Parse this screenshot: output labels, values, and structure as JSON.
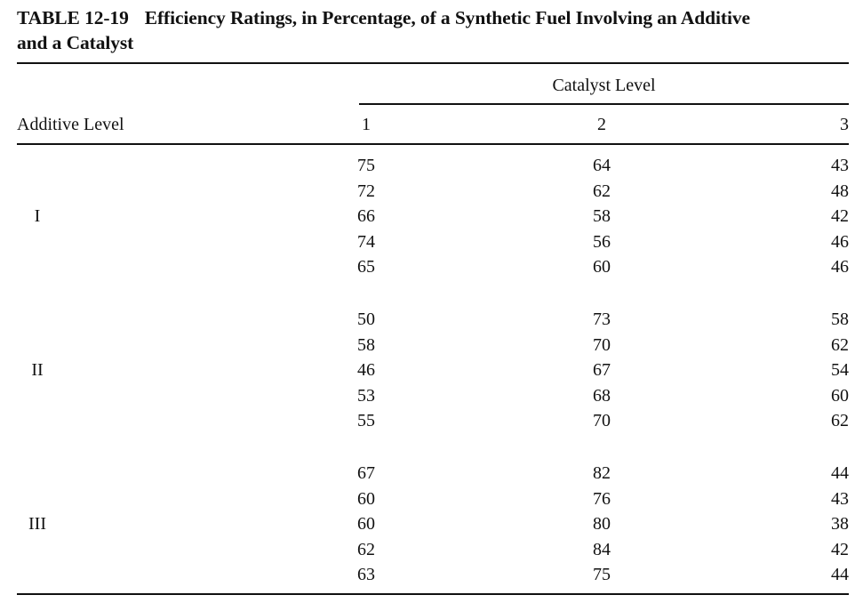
{
  "caption": {
    "number": "TABLE 12-19",
    "title_line1": "Efficiency Ratings, in Percentage, of a Synthetic Fuel Involving an Additive",
    "title_line2": "and a Catalyst"
  },
  "table": {
    "spanner_header": "Catalyst Level",
    "stub_header": "Additive Level",
    "column_headers": [
      "1",
      "2",
      "3"
    ],
    "groups": [
      {
        "label": "I",
        "rows": [
          [
            "75",
            "64",
            "43"
          ],
          [
            "72",
            "62",
            "48"
          ],
          [
            "66",
            "58",
            "42"
          ],
          [
            "74",
            "56",
            "46"
          ],
          [
            "65",
            "60",
            "46"
          ]
        ]
      },
      {
        "label": "II",
        "rows": [
          [
            "50",
            "73",
            "58"
          ],
          [
            "58",
            "70",
            "62"
          ],
          [
            "46",
            "67",
            "54"
          ],
          [
            "53",
            "68",
            "60"
          ],
          [
            "55",
            "70",
            "62"
          ]
        ]
      },
      {
        "label": "III",
        "rows": [
          [
            "67",
            "82",
            "44"
          ],
          [
            "60",
            "76",
            "43"
          ],
          [
            "60",
            "80",
            "38"
          ],
          [
            "62",
            "84",
            "42"
          ],
          [
            "63",
            "75",
            "44"
          ]
        ]
      }
    ]
  }
}
